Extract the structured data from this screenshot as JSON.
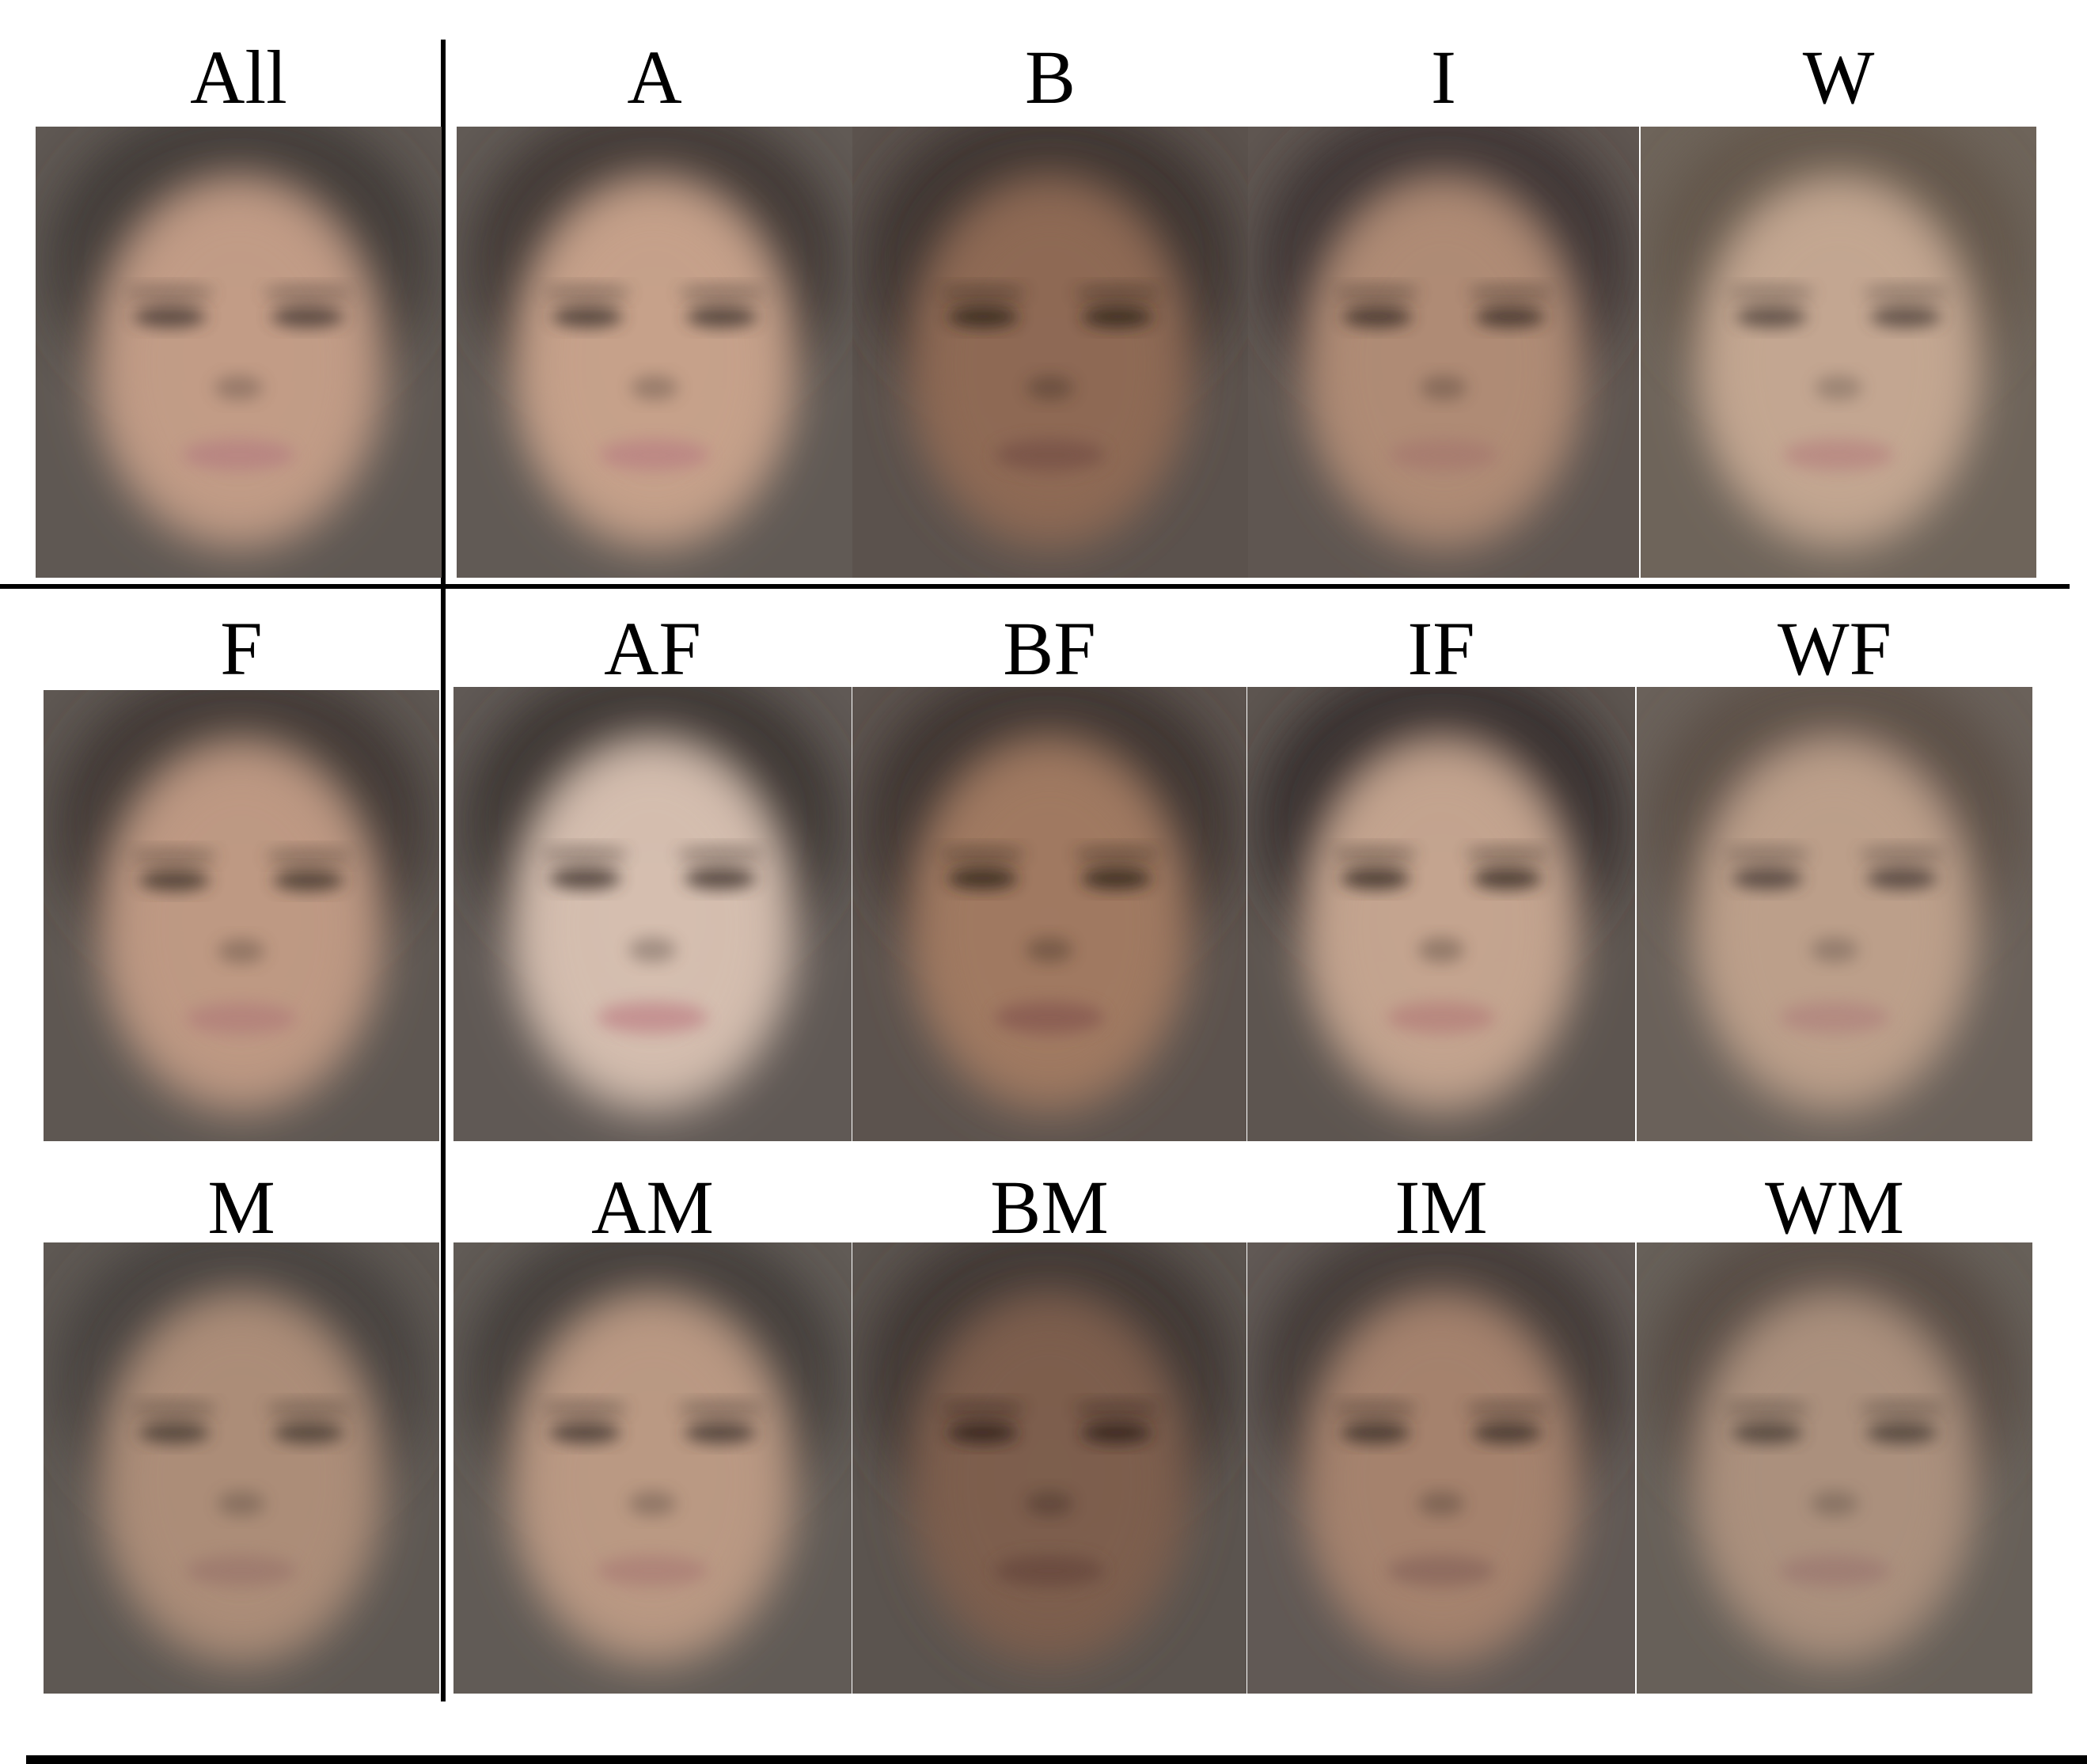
{
  "panels": [
    {
      "label": "All",
      "skin": "#c39d87",
      "bg": "#5f5853",
      "hair": "#3e3835",
      "lips": "#b88482",
      "eyes": "#4c3e37"
    },
    {
      "label": "A",
      "skin": "#c7a28b",
      "bg": "#615a55",
      "hair": "#3c3633",
      "lips": "#bc8684",
      "eyes": "#473a34"
    },
    {
      "label": "B",
      "skin": "#8f6a55",
      "bg": "#5b524d",
      "hair": "#3a322e",
      "lips": "#7a5549",
      "eyes": "#33261f"
    },
    {
      "label": "I",
      "skin": "#b08c76",
      "bg": "#5f5651",
      "hair": "#3b3330",
      "lips": "#a77b70",
      "eyes": "#3f322c"
    },
    {
      "label": "W",
      "skin": "#c4a792",
      "bg": "#6e645a",
      "hair": "#625548",
      "lips": "#b98a83",
      "eyes": "#54463f"
    },
    {
      "label": "F",
      "skin": "#bf9a84",
      "bg": "#5e5752",
      "hair": "#3c3532",
      "lips": "#b4827c",
      "eyes": "#45372f"
    },
    {
      "label": "AF",
      "skin": "#d6bfb0",
      "bg": "#605955",
      "hair": "#38312e",
      "lips": "#c38e8f",
      "eyes": "#443731"
    },
    {
      "label": "BF",
      "skin": "#a17a62",
      "bg": "#5c534e",
      "hair": "#3a312d",
      "lips": "#8a5d52",
      "eyes": "#33261f"
    },
    {
      "label": "IF",
      "skin": "#c5a590",
      "bg": "#5d5550",
      "hair": "#332c29",
      "lips": "#b7857e",
      "eyes": "#3b2e28"
    },
    {
      "label": "WF",
      "skin": "#bda08b",
      "bg": "#6a615a",
      "hair": "#5a4e45",
      "lips": "#b28880",
      "eyes": "#4e413a"
    },
    {
      "label": "M",
      "skin": "#ad8e79",
      "bg": "#5e5853",
      "hair": "#45403c",
      "lips": "#9e7a6e",
      "eyes": "#4a3d36"
    },
    {
      "label": "AM",
      "skin": "#bb9a84",
      "bg": "#615b56",
      "hair": "#413b38",
      "lips": "#ad8278",
      "eyes": "#463a34"
    },
    {
      "label": "BM",
      "skin": "#7e5f4e",
      "bg": "#5b544f",
      "hair": "#3c3430",
      "lips": "#6b4c41",
      "eyes": "#30241e"
    },
    {
      "label": "IM",
      "skin": "#a6836e",
      "bg": "#615955",
      "hair": "#3f3834",
      "lips": "#8d6a5e",
      "eyes": "#3e312b"
    },
    {
      "label": "WM",
      "skin": "#ac917e",
      "bg": "#676059",
      "hair": "#544a43",
      "lips": "#9f7d73",
      "eyes": "#4b3f38"
    }
  ]
}
